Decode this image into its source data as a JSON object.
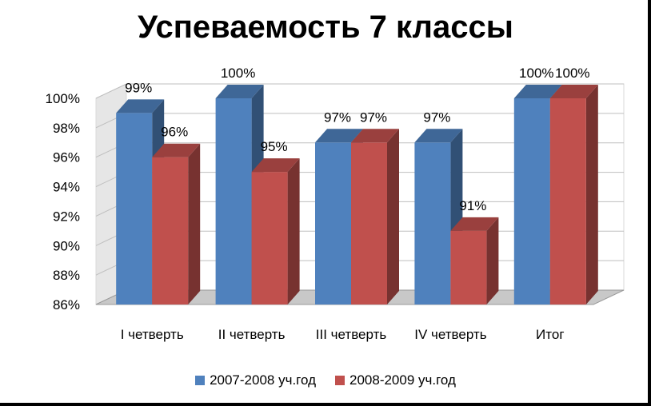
{
  "chart_data": {
    "type": "bar",
    "title": "Успеваемость 7 классы",
    "categories": [
      "I четверть",
      "II четверть",
      "III четверть",
      "IV четверть",
      "Итог"
    ],
    "series": [
      {
        "name": "2007-2008 уч.год",
        "values": [
          99,
          100,
          97,
          97,
          100
        ],
        "labels": [
          "99%",
          "100%",
          "97%",
          "97%",
          "100%"
        ],
        "color": "#4F81BD"
      },
      {
        "name": "2008-2009 уч.год",
        "values": [
          96,
          95,
          97,
          91,
          100
        ],
        "labels": [
          "96%",
          "95%",
          "97%",
          "91%",
          "100%"
        ],
        "color": "#C0504D"
      }
    ],
    "ylim": [
      86,
      100
    ],
    "yticks": [
      "86%",
      "88%",
      "90%",
      "92%",
      "94%",
      "96%",
      "98%",
      "100%"
    ],
    "grid": true,
    "legend": "bottom",
    "three_d": true
  }
}
